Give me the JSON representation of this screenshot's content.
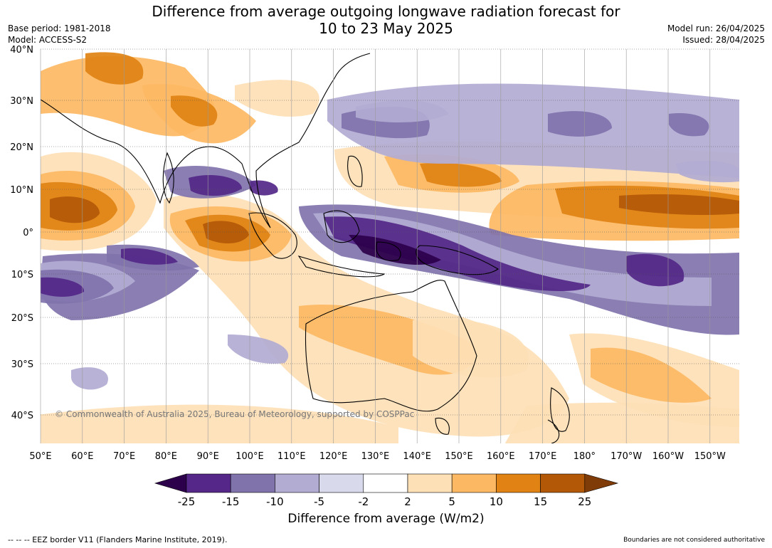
{
  "header": {
    "title_line1": "Difference from average outgoing longwave radiation forecast for",
    "title_line2": "10 to 23 May 2025",
    "base_period": "Base period: 1981-2018",
    "model": "Model: ACCESS-S2",
    "model_run": "Model run: 26/04/2025",
    "issued": "Issued: 28/04/2025"
  },
  "map": {
    "lat_labels": [
      "40°N",
      "30°N",
      "20°N",
      "10°N",
      "0°",
      "10°S",
      "20°S",
      "30°S",
      "40°S"
    ],
    "lon_labels": [
      "50°E",
      "60°E",
      "70°E",
      "80°E",
      "90°E",
      "100°E",
      "110°E",
      "120°E",
      "130°E",
      "140°E",
      "150°E",
      "160°E",
      "170°E",
      "180°",
      "170°W",
      "160°W",
      "150°W"
    ],
    "copyright": "© Commonwealth of Australia 2025, Bureau of Meteorology, supported by COSPPac",
    "colors": {
      "ocean_neutral": "#ffffff",
      "coast": "#000000",
      "grid": "#9a9a9a"
    }
  },
  "colorbar": {
    "title": "Difference from average (W/m2)",
    "tick_labels": [
      "-25",
      "-15",
      "-10",
      "-5",
      "-2",
      "2",
      "5",
      "10",
      "15",
      "25"
    ],
    "colors": [
      "#2d004b",
      "#542788",
      "#8073ac",
      "#b2abd2",
      "#d8daeb",
      "#ffffff",
      "#fee0b6",
      "#fdb863",
      "#e08214",
      "#b35806",
      "#7f3b08"
    ]
  },
  "footer": {
    "eez_legend": "--  --  -- EEZ border V11 (Flanders Marine Institute, 2019).",
    "disclaimer": "Boundaries are not considered authoritative"
  }
}
